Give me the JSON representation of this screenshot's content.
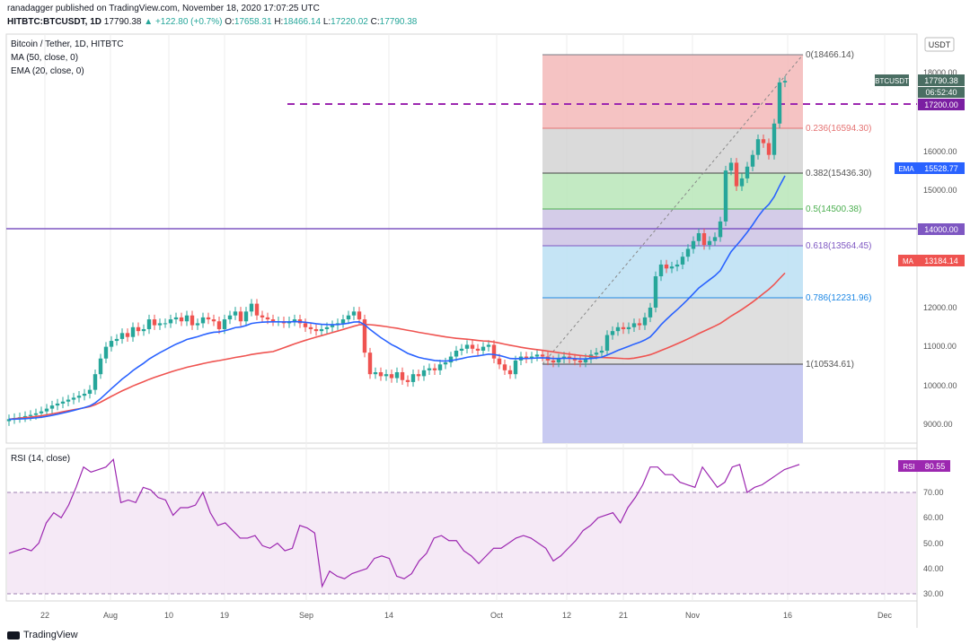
{
  "header": {
    "line1": "ranadagger published on TradingView.com, November 18, 2020 17:07:25 UTC",
    "symbol": "HITBTC:BTCUSDT, 1D",
    "last": "17790.38",
    "change": "▲ +122.80 (+0.7%)",
    "ohlc": {
      "o_label": "O:",
      "o": "17658.31",
      "h_label": "H:",
      "h": "18466.14",
      "l_label": "L:",
      "l": "17220.02",
      "c_label": "C:",
      "c": "17790.38"
    }
  },
  "legend": {
    "title": "Bitcoin / Tether, 1D, HITBTC",
    "ma": "MA (50, close, 0)",
    "ema": "EMA (20, close, 0)",
    "rsi": "RSI (14, close)"
  },
  "currency_button": "USDT",
  "colors": {
    "up": "#26a69a",
    "down": "#ef5350",
    "ema": "#2962ff",
    "ma": "#ef5350",
    "rsi": "#9c27b0",
    "purple_line": "#7e57c2",
    "axis_text": "#555555"
  },
  "price_axis": {
    "ticks": [
      "18000.00",
      "16000.00",
      "15000.00",
      "12000.00",
      "11000.00",
      "10000.00",
      "9000.00"
    ]
  },
  "price_labels": [
    {
      "name": "btcusdt-label",
      "text": "BTCUSDT",
      "value": "17790.38",
      "color": "#4a6e63"
    },
    {
      "name": "countdown-label",
      "text": "06:52:40",
      "color": "#4a6e63"
    },
    {
      "name": "level-17200-label",
      "text": "17200.00",
      "color": "#7b1fa2"
    },
    {
      "name": "ema-label",
      "text": "EMA",
      "value": "15528.77",
      "color": "#2962ff"
    },
    {
      "name": "level-14000-label",
      "text": "14000.00",
      "color": "#7e57c2"
    },
    {
      "name": "ma-label",
      "text": "MA",
      "value": "13184.14",
      "color": "#ef5350"
    }
  ],
  "fib": [
    {
      "ratio": "0",
      "label": "0(18466.14)",
      "color": "#787b86"
    },
    {
      "ratio": "0.236",
      "label": "0.236(16594.30)",
      "color": "#e57373"
    },
    {
      "ratio": "0.382",
      "label": "0.382(15436.30)",
      "color": "#555555"
    },
    {
      "ratio": "0.5",
      "label": "0.5(14500.38)",
      "color": "#4caf50"
    },
    {
      "ratio": "0.618",
      "label": "0.618(13564.45)",
      "color": "#7e57c2"
    },
    {
      "ratio": "0.786",
      "label": "0.786(12231.96)",
      "color": "#1e88e5"
    },
    {
      "ratio": "1",
      "label": "1(10534.61)",
      "color": "#555555"
    }
  ],
  "rsi_axis": {
    "ticks": [
      "70.00",
      "60.00",
      "50.00",
      "40.00",
      "30.00"
    ],
    "value_label": "RSI",
    "value": "80.55"
  },
  "time_axis": {
    "ticks": [
      "22",
      "Aug",
      "10",
      "19",
      "Sep",
      "14",
      "Oct",
      "12",
      "21",
      "Nov",
      "16",
      "Dec"
    ]
  },
  "footer": {
    "brand": "TradingView"
  }
}
